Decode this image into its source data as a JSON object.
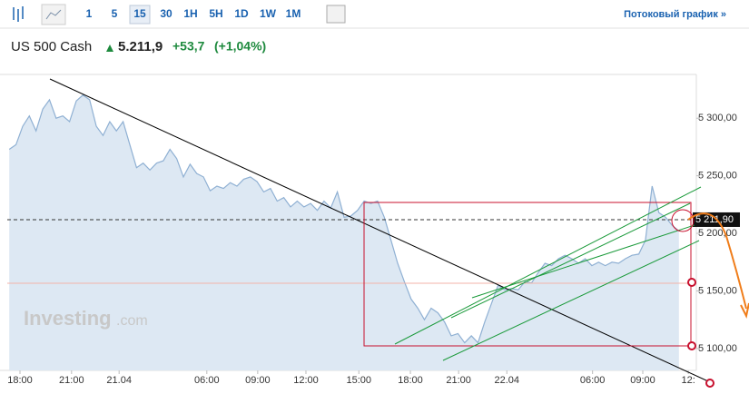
{
  "toolbar": {
    "intervals": [
      "1",
      "5",
      "15",
      "30",
      "1H",
      "5H",
      "1D",
      "1W",
      "1M"
    ],
    "active": "15",
    "stream_link": "Потоковый график »"
  },
  "quote": {
    "name": "US 500 Cash",
    "price": "5.211,9",
    "change": "+53,7",
    "change_pct": "(+1,04%)"
  },
  "watermark": {
    "brand": "Investing",
    "suffix": ".com"
  },
  "chart_data": {
    "type": "area",
    "x": [
      0,
      1,
      2,
      3,
      4,
      5,
      6,
      7,
      8,
      9,
      10,
      11,
      12,
      13,
      14,
      15,
      16,
      17,
      18,
      19,
      20,
      21,
      22,
      23,
      24,
      25,
      26,
      27,
      28,
      29,
      30,
      31,
      32,
      33,
      34,
      35,
      36,
      37,
      38,
      39,
      40,
      41,
      42,
      43,
      44,
      45,
      46,
      47,
      48,
      49,
      50,
      51,
      52,
      53,
      54,
      55,
      56,
      57,
      58,
      59,
      60,
      61,
      62,
      63,
      64,
      65,
      66,
      67,
      68,
      69,
      70,
      71,
      72,
      73,
      74,
      75,
      76,
      77,
      78,
      79,
      80,
      81,
      82,
      83,
      84,
      85,
      86,
      87,
      88,
      89,
      90,
      91,
      92,
      93,
      94,
      95,
      96,
      97,
      98,
      99,
      100
    ],
    "series": [
      {
        "name": "US 500 Cash",
        "color": "#8fb0d3",
        "values": [
          5273,
          5277,
          5293,
          5302,
          5289,
          5308,
          5316,
          5300,
          5302,
          5297,
          5315,
          5320,
          5316,
          5293,
          5285,
          5297,
          5289,
          5297,
          5277,
          5257,
          5261,
          5255,
          5261,
          5263,
          5273,
          5265,
          5249,
          5260,
          5252,
          5249,
          5237,
          5241,
          5239,
          5244,
          5241,
          5247,
          5249,
          5245,
          5236,
          5239,
          5228,
          5231,
          5223,
          5228,
          5223,
          5226,
          5220,
          5228,
          5222,
          5236,
          5214,
          5215,
          5220,
          5228,
          5226,
          5228,
          5214,
          5194,
          5174,
          5158,
          5143,
          5135,
          5125,
          5135,
          5131,
          5123,
          5111,
          5113,
          5105,
          5111,
          5105,
          5123,
          5139,
          5155,
          5151,
          5152,
          5151,
          5158,
          5157,
          5166,
          5174,
          5172,
          5178,
          5181,
          5178,
          5174,
          5178,
          5172,
          5175,
          5172,
          5175,
          5174,
          5178,
          5181,
          5182,
          5194,
          5241,
          5218,
          5214,
          5207,
          5202
        ]
      }
    ],
    "last_price": {
      "value": 5211.9,
      "label": "5 211,90"
    },
    "xlim": [
      -0.3,
      102.6
    ],
    "xticks": [
      {
        "value": 1.6,
        "label": "18:00"
      },
      {
        "value": 9.3,
        "label": "21:00"
      },
      {
        "value": 16.4,
        "label": "21.04"
      },
      {
        "value": 29.5,
        "label": "06:00"
      },
      {
        "value": 37.1,
        "label": "09:00"
      },
      {
        "value": 44.3,
        "label": "12:00"
      },
      {
        "value": 52.2,
        "label": "15:00"
      },
      {
        "value": 59.9,
        "label": "18:00"
      },
      {
        "value": 67.1,
        "label": "21:00"
      },
      {
        "value": 74.3,
        "label": "22.04"
      },
      {
        "value": 87.1,
        "label": "06:00"
      },
      {
        "value": 94.6,
        "label": "09:00"
      },
      {
        "value": 101.4,
        "label": "12:"
      }
    ],
    "ylim": [
      5081,
      5338
    ],
    "yticks": [
      {
        "value": 5100,
        "label": "5 100,00"
      },
      {
        "value": 5150,
        "label": "5 150,00"
      },
      {
        "value": 5200,
        "label": "5 200,00"
      },
      {
        "value": 5250,
        "label": "5 250,00"
      },
      {
        "value": 5300,
        "label": "5 300,00"
      }
    ],
    "fill": "#dde8f3"
  }
}
